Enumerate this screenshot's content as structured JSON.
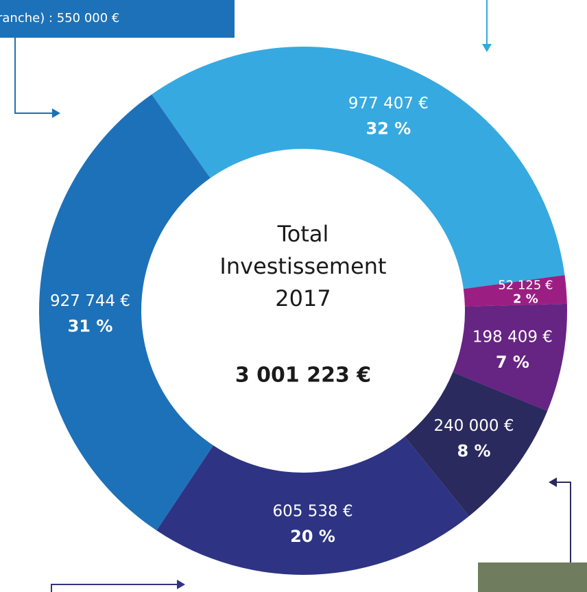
{
  "chart_data": {
    "type": "donut",
    "center_text": [
      "Total",
      "Investissement",
      "2017"
    ],
    "total": 3001223,
    "total_label": "3 001 223 €",
    "annotation": "ranche) : 550 000 €",
    "values": [
      977407,
      52125,
      198409,
      240000,
      605538,
      927744
    ],
    "value_labels": [
      "977 407 €",
      "52 125 €",
      "198 409 €",
      "240 000 €",
      "605 538 €",
      "927 744 €"
    ],
    "percentages": [
      32,
      2,
      7,
      8,
      20,
      31
    ],
    "percentage_labels": [
      "32 %",
      "2 %",
      "7 %",
      "8 %",
      "20 %",
      "31 %"
    ],
    "colors": [
      "#36a9e1",
      "#9b1f82",
      "#662483",
      "#2b2a5e",
      "#2e3483",
      "#1d71b8"
    ]
  }
}
